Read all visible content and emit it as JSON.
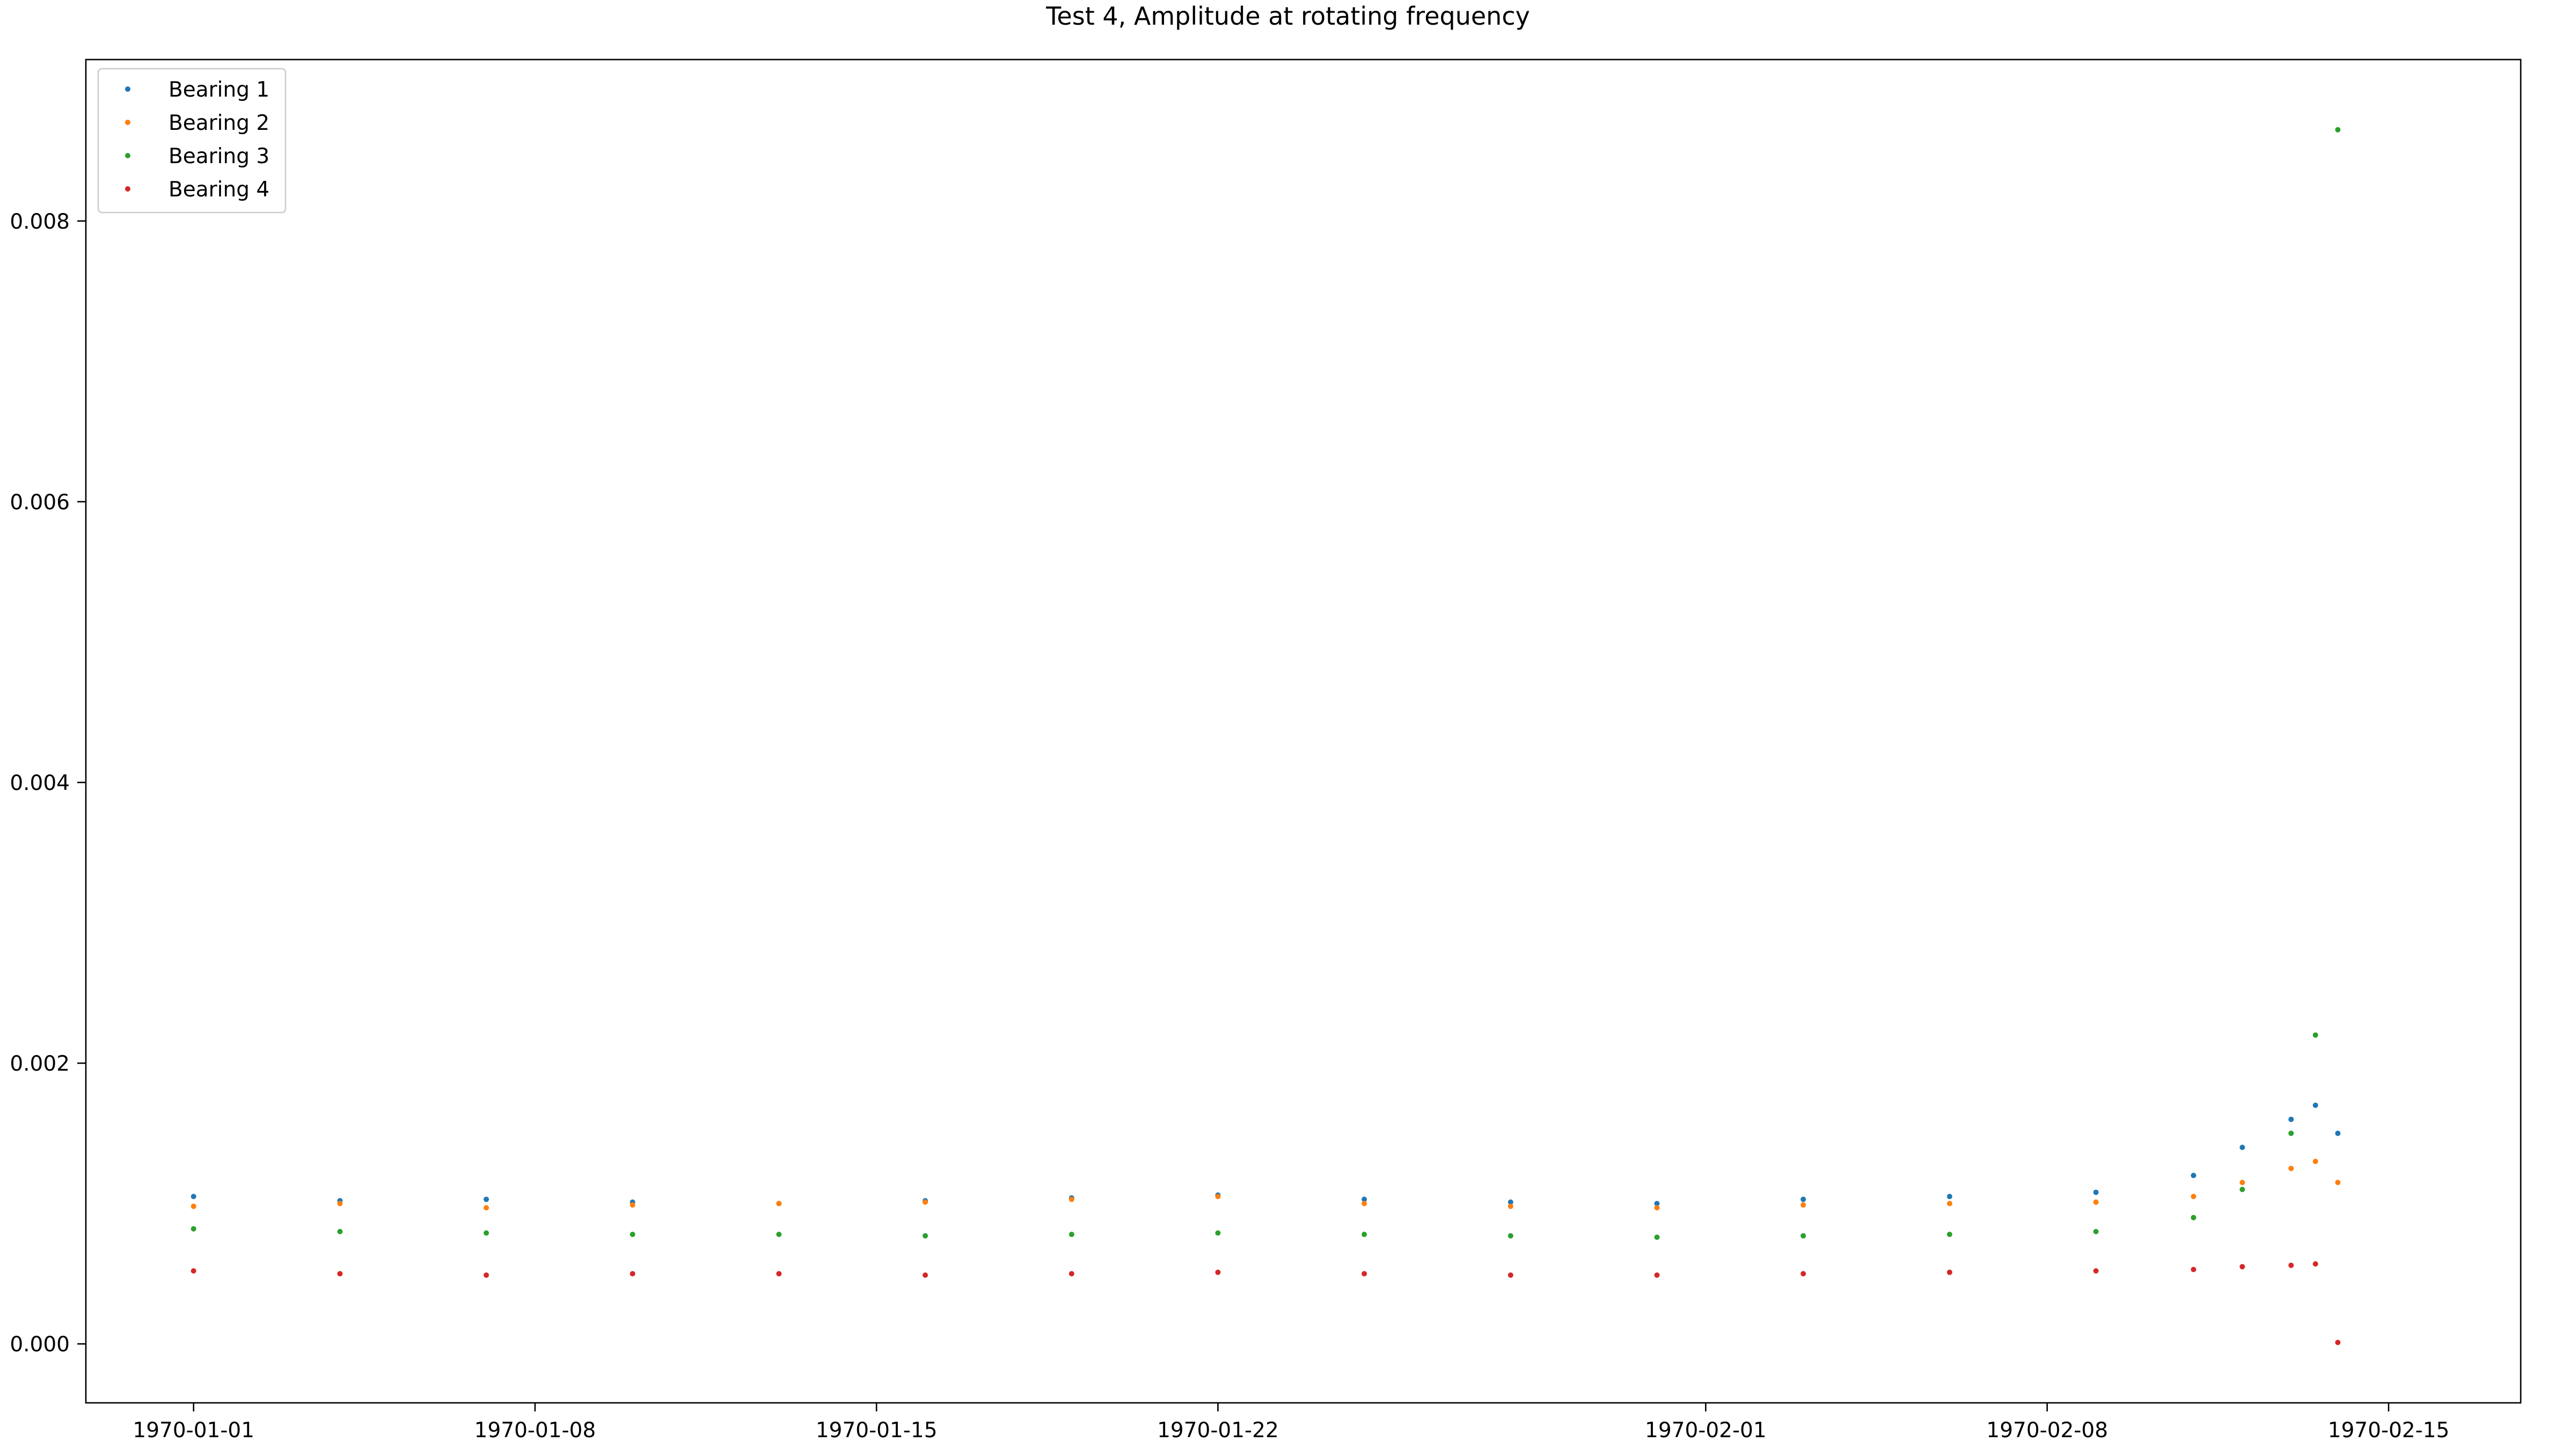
{
  "chart_data": {
    "type": "scatter",
    "title": "Test 4, Amplitude at rotating frequency",
    "xlabel": "",
    "ylabel": "",
    "x_axis": {
      "kind": "date",
      "range": [
        "1969-12-29T19:00",
        "1970-02-17T17:00"
      ],
      "ticks": [
        "1970-01-01",
        "1970-01-08",
        "1970-01-15",
        "1970-01-22",
        "1970-02-01",
        "1970-02-08",
        "1970-02-15"
      ]
    },
    "y_axis": {
      "range": [
        -0.00042,
        0.00915
      ],
      "ticks": [
        0.0,
        0.002,
        0.004,
        0.006,
        0.008
      ],
      "tick_labels": [
        "0.000",
        "0.002",
        "0.004",
        "0.006",
        "0.008"
      ]
    },
    "grid": false,
    "legend": "top-left",
    "marker": "point",
    "series": [
      {
        "name": "Bearing 1",
        "color": "#1f77b4",
        "x": [
          "1970-01-01",
          "1970-01-04",
          "1970-01-07",
          "1970-01-10",
          "1970-01-13",
          "1970-01-16",
          "1970-01-19",
          "1970-01-22",
          "1970-01-25",
          "1970-01-28",
          "1970-01-31",
          "1970-02-03",
          "1970-02-06",
          "1970-02-09",
          "1970-02-11",
          "1970-02-12",
          "1970-02-13",
          "1970-02-13T12:00",
          "1970-02-13T23:00"
        ],
        "y": [
          0.00105,
          0.00102,
          0.00103,
          0.00101,
          0.001,
          0.00102,
          0.00104,
          0.00106,
          0.00103,
          0.00101,
          0.001,
          0.00103,
          0.00105,
          0.00108,
          0.0012,
          0.0014,
          0.0016,
          0.0017,
          0.0015
        ]
      },
      {
        "name": "Bearing 2",
        "color": "#ff7f0e",
        "x": [
          "1970-01-01",
          "1970-01-04",
          "1970-01-07",
          "1970-01-10",
          "1970-01-13",
          "1970-01-16",
          "1970-01-19",
          "1970-01-22",
          "1970-01-25",
          "1970-01-28",
          "1970-01-31",
          "1970-02-03",
          "1970-02-06",
          "1970-02-09",
          "1970-02-11",
          "1970-02-12",
          "1970-02-13",
          "1970-02-13T12:00",
          "1970-02-13T23:00"
        ],
        "y": [
          0.00098,
          0.001,
          0.00097,
          0.00099,
          0.001,
          0.00101,
          0.00103,
          0.00105,
          0.001,
          0.00098,
          0.00097,
          0.00099,
          0.001,
          0.00101,
          0.00105,
          0.00115,
          0.00125,
          0.0013,
          0.00115
        ]
      },
      {
        "name": "Bearing 3",
        "color": "#2ca02c",
        "x": [
          "1970-01-01",
          "1970-01-04",
          "1970-01-07",
          "1970-01-10",
          "1970-01-13",
          "1970-01-16",
          "1970-01-19",
          "1970-01-22",
          "1970-01-25",
          "1970-01-28",
          "1970-01-31",
          "1970-02-03",
          "1970-02-06",
          "1970-02-09",
          "1970-02-11",
          "1970-02-12",
          "1970-02-13",
          "1970-02-13T12:00",
          "1970-02-13T23:00"
        ],
        "y": [
          0.00082,
          0.0008,
          0.00079,
          0.00078,
          0.00078,
          0.00077,
          0.00078,
          0.00079,
          0.00078,
          0.00077,
          0.00076,
          0.00077,
          0.00078,
          0.0008,
          0.0009,
          0.0011,
          0.0015,
          0.0022,
          0.00865
        ]
      },
      {
        "name": "Bearing 4",
        "color": "#d62728",
        "x": [
          "1970-01-01",
          "1970-01-04",
          "1970-01-07",
          "1970-01-10",
          "1970-01-13",
          "1970-01-16",
          "1970-01-19",
          "1970-01-22",
          "1970-01-25",
          "1970-01-28",
          "1970-01-31",
          "1970-02-03",
          "1970-02-06",
          "1970-02-09",
          "1970-02-11",
          "1970-02-12",
          "1970-02-13",
          "1970-02-13T12:00",
          "1970-02-13T23:00"
        ],
        "y": [
          0.00052,
          0.0005,
          0.00049,
          0.0005,
          0.0005,
          0.00049,
          0.0005,
          0.00051,
          0.0005,
          0.00049,
          0.00049,
          0.0005,
          0.00051,
          0.00052,
          0.00053,
          0.00055,
          0.00056,
          0.00057,
          1e-05
        ]
      }
    ]
  }
}
